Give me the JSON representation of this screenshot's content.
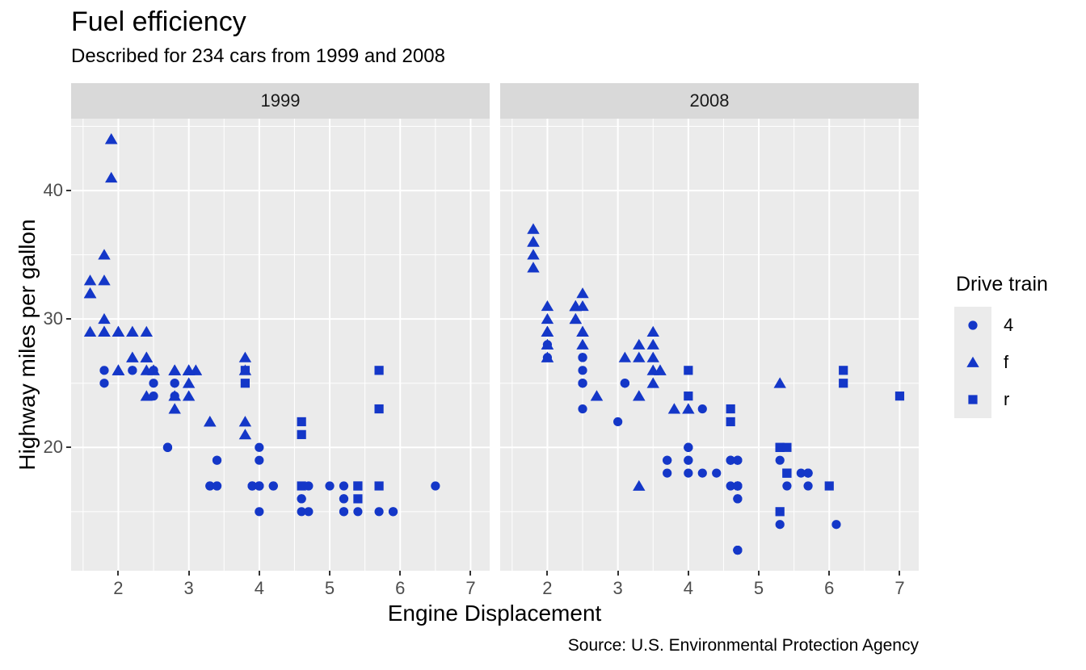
{
  "chart_data": {
    "type": "scatter",
    "title": "Fuel efficiency",
    "subtitle": "Described for 234 cars from 1999 and 2008",
    "caption": "Source: U.S. Environmental Protection Agency",
    "xlabel": "Engine Displacement",
    "ylabel": "Highway miles per gallon",
    "xlim": [
      1.33,
      7.27
    ],
    "ylim": [
      10.4,
      45.6
    ],
    "x_ticks": [
      2,
      3,
      4,
      5,
      6,
      7
    ],
    "x_minor_ticks": [
      1.5,
      2.5,
      3.5,
      4.5,
      5.5,
      6.5
    ],
    "y_ticks": [
      20,
      30,
      40
    ],
    "y_minor_ticks": [
      15,
      25,
      35,
      45
    ],
    "grid": true,
    "legend_position": "right",
    "colors": {
      "point": "#1437C8",
      "panel_bg": "#EBEBEB",
      "strip_bg": "#D9D9D9",
      "grid": "#FFFFFF",
      "tick_text": "#4D4D4D",
      "tick_mark": "#333333"
    },
    "legend": {
      "title": "Drive train",
      "entries": [
        {
          "label": "4",
          "shape": "circle"
        },
        {
          "label": "f",
          "shape": "triangle"
        },
        {
          "label": "r",
          "shape": "square"
        }
      ]
    },
    "facets": [
      {
        "label": "1999",
        "series": [
          {
            "name": "4",
            "shape": "circle",
            "points": [
              [
                1.8,
                26
              ],
              [
                1.8,
                25
              ],
              [
                2.2,
                26
              ],
              [
                2.2,
                26
              ],
              [
                2.5,
                25
              ],
              [
                2.5,
                24
              ],
              [
                2.5,
                26
              ],
              [
                2.5,
                26
              ],
              [
                2.7,
                20
              ],
              [
                2.7,
                20
              ],
              [
                2.7,
                20
              ],
              [
                2.7,
                20
              ],
              [
                2.8,
                25
              ],
              [
                2.8,
                25
              ],
              [
                2.8,
                24
              ],
              [
                3.3,
                17
              ],
              [
                3.3,
                17
              ],
              [
                3.4,
                19
              ],
              [
                3.4,
                17
              ],
              [
                3.4,
                17
              ],
              [
                3.4,
                19
              ],
              [
                3.9,
                17
              ],
              [
                3.9,
                17
              ],
              [
                3.9,
                17
              ],
              [
                4.0,
                17
              ],
              [
                4.0,
                19
              ],
              [
                4.0,
                17
              ],
              [
                4.0,
                17
              ],
              [
                4.0,
                20
              ],
              [
                4.0,
                15
              ],
              [
                4.0,
                17
              ],
              [
                4.2,
                17
              ],
              [
                4.2,
                17
              ],
              [
                4.6,
                16
              ],
              [
                4.6,
                16
              ],
              [
                4.6,
                15
              ],
              [
                4.7,
                17
              ],
              [
                4.7,
                15
              ],
              [
                5.0,
                17
              ],
              [
                5.2,
                17
              ],
              [
                5.2,
                15
              ],
              [
                5.2,
                16
              ],
              [
                5.2,
                15
              ],
              [
                5.2,
                16
              ],
              [
                5.4,
                15
              ],
              [
                5.7,
                15
              ],
              [
                5.9,
                15
              ],
              [
                5.9,
                15
              ],
              [
                6.5,
                17
              ]
            ]
          },
          {
            "name": "f",
            "shape": "triangle",
            "points": [
              [
                1.6,
                33
              ],
              [
                1.6,
                32
              ],
              [
                1.6,
                32
              ],
              [
                1.6,
                29
              ],
              [
                1.6,
                32
              ],
              [
                1.8,
                29
              ],
              [
                1.8,
                29
              ],
              [
                1.8,
                30
              ],
              [
                1.8,
                33
              ],
              [
                1.8,
                35
              ],
              [
                1.8,
                29
              ],
              [
                1.8,
                29
              ],
              [
                1.9,
                44
              ],
              [
                1.9,
                44
              ],
              [
                1.9,
                41
              ],
              [
                2.0,
                26
              ],
              [
                2.0,
                29
              ],
              [
                2.0,
                29
              ],
              [
                2.0,
                26
              ],
              [
                2.0,
                29
              ],
              [
                2.0,
                26
              ],
              [
                2.0,
                29
              ],
              [
                2.0,
                26
              ],
              [
                2.2,
                29
              ],
              [
                2.2,
                27
              ],
              [
                2.2,
                27
              ],
              [
                2.2,
                29
              ],
              [
                2.4,
                27
              ],
              [
                2.4,
                26
              ],
              [
                2.4,
                27
              ],
              [
                2.4,
                29
              ],
              [
                2.4,
                27
              ],
              [
                2.4,
                24
              ],
              [
                2.5,
                26
              ],
              [
                2.5,
                26
              ],
              [
                2.8,
                26
              ],
              [
                2.8,
                26
              ],
              [
                2.8,
                24
              ],
              [
                2.8,
                23
              ],
              [
                2.8,
                24
              ],
              [
                2.8,
                26
              ],
              [
                2.8,
                26
              ],
              [
                3.0,
                24
              ],
              [
                3.0,
                26
              ],
              [
                3.0,
                25
              ],
              [
                3.0,
                26
              ],
              [
                3.0,
                26
              ],
              [
                3.0,
                26
              ],
              [
                3.0,
                26
              ],
              [
                3.1,
                26
              ],
              [
                3.1,
                26
              ],
              [
                3.3,
                22
              ],
              [
                3.3,
                22
              ],
              [
                3.8,
                22
              ],
              [
                3.8,
                21
              ],
              [
                3.8,
                26
              ],
              [
                3.8,
                27
              ]
            ]
          },
          {
            "name": "r",
            "shape": "square",
            "points": [
              [
                3.8,
                26
              ],
              [
                3.8,
                25
              ],
              [
                4.6,
                21
              ],
              [
                4.6,
                22
              ],
              [
                4.6,
                17
              ],
              [
                5.4,
                17
              ],
              [
                5.4,
                17
              ],
              [
                5.4,
                16
              ],
              [
                5.7,
                17
              ],
              [
                5.7,
                26
              ],
              [
                5.7,
                23
              ]
            ]
          }
        ]
      },
      {
        "label": "2008",
        "series": [
          {
            "name": "4",
            "shape": "circle",
            "points": [
              [
                2.0,
                28
              ],
              [
                2.0,
                27
              ],
              [
                2.5,
                27
              ],
              [
                2.5,
                25
              ],
              [
                2.5,
                26
              ],
              [
                2.5,
                23
              ],
              [
                2.5,
                25
              ],
              [
                2.5,
                27
              ],
              [
                2.5,
                25
              ],
              [
                2.5,
                27
              ],
              [
                3.0,
                22
              ],
              [
                3.1,
                25
              ],
              [
                3.1,
                25
              ],
              [
                3.1,
                25
              ],
              [
                3.7,
                19
              ],
              [
                3.7,
                18
              ],
              [
                3.7,
                19
              ],
              [
                4.0,
                19
              ],
              [
                4.0,
                20
              ],
              [
                4.0,
                18
              ],
              [
                4.0,
                20
              ],
              [
                4.0,
                20
              ],
              [
                4.0,
                19
              ],
              [
                4.2,
                23
              ],
              [
                4.2,
                18
              ],
              [
                4.4,
                18
              ],
              [
                4.6,
                19
              ],
              [
                4.6,
                19
              ],
              [
                4.6,
                17
              ],
              [
                4.6,
                19
              ],
              [
                4.7,
                19
              ],
              [
                4.7,
                19
              ],
              [
                4.7,
                12
              ],
              [
                4.7,
                17
              ],
              [
                4.7,
                12
              ],
              [
                4.7,
                17
              ],
              [
                4.7,
                16
              ],
              [
                4.7,
                12
              ],
              [
                4.7,
                17
              ],
              [
                4.7,
                17
              ],
              [
                4.7,
                16
              ],
              [
                4.7,
                17
              ],
              [
                4.7,
                12
              ],
              [
                4.7,
                19
              ],
              [
                4.7,
                17
              ],
              [
                5.3,
                19
              ],
              [
                5.3,
                14
              ],
              [
                5.4,
                17
              ],
              [
                5.6,
                18
              ],
              [
                5.7,
                18
              ],
              [
                5.7,
                17
              ],
              [
                5.7,
                18
              ],
              [
                5.7,
                18
              ],
              [
                6.1,
                14
              ]
            ]
          },
          {
            "name": "f",
            "shape": "triangle",
            "points": [
              [
                1.8,
                34
              ],
              [
                1.8,
                36
              ],
              [
                1.8,
                36
              ],
              [
                1.8,
                37
              ],
              [
                1.8,
                35
              ],
              [
                2.0,
                31
              ],
              [
                2.0,
                30
              ],
              [
                2.0,
                29
              ],
              [
                2.0,
                28
              ],
              [
                2.0,
                27
              ],
              [
                2.0,
                27
              ],
              [
                2.0,
                29
              ],
              [
                2.0,
                29
              ],
              [
                2.0,
                29
              ],
              [
                2.0,
                29
              ],
              [
                2.0,
                28
              ],
              [
                2.0,
                29
              ],
              [
                2.4,
                30
              ],
              [
                2.4,
                30
              ],
              [
                2.4,
                31
              ],
              [
                2.4,
                31
              ],
              [
                2.4,
                31
              ],
              [
                2.4,
                31
              ],
              [
                2.4,
                31
              ],
              [
                2.5,
                31
              ],
              [
                2.5,
                32
              ],
              [
                2.5,
                29
              ],
              [
                2.5,
                29
              ],
              [
                2.5,
                28
              ],
              [
                2.5,
                29
              ],
              [
                2.7,
                24
              ],
              [
                2.7,
                24
              ],
              [
                3.1,
                27
              ],
              [
                3.3,
                28
              ],
              [
                3.3,
                27
              ],
              [
                3.3,
                24
              ],
              [
                3.3,
                24
              ],
              [
                3.3,
                17
              ],
              [
                3.5,
                29
              ],
              [
                3.5,
                27
              ],
              [
                3.5,
                26
              ],
              [
                3.5,
                25
              ],
              [
                3.5,
                28
              ],
              [
                3.6,
                26
              ],
              [
                3.6,
                26
              ],
              [
                3.8,
                23
              ],
              [
                4.0,
                23
              ],
              [
                5.3,
                25
              ]
            ]
          },
          {
            "name": "r",
            "shape": "square",
            "points": [
              [
                4.0,
                26
              ],
              [
                4.0,
                24
              ],
              [
                4.6,
                23
              ],
              [
                4.6,
                22
              ],
              [
                5.3,
                20
              ],
              [
                5.3,
                15
              ],
              [
                5.3,
                20
              ],
              [
                5.4,
                20
              ],
              [
                5.4,
                18
              ],
              [
                5.4,
                18
              ],
              [
                5.4,
                18
              ],
              [
                6.0,
                17
              ],
              [
                6.2,
                26
              ],
              [
                6.2,
                25
              ],
              [
                7.0,
                24
              ]
            ]
          }
        ]
      }
    ]
  }
}
